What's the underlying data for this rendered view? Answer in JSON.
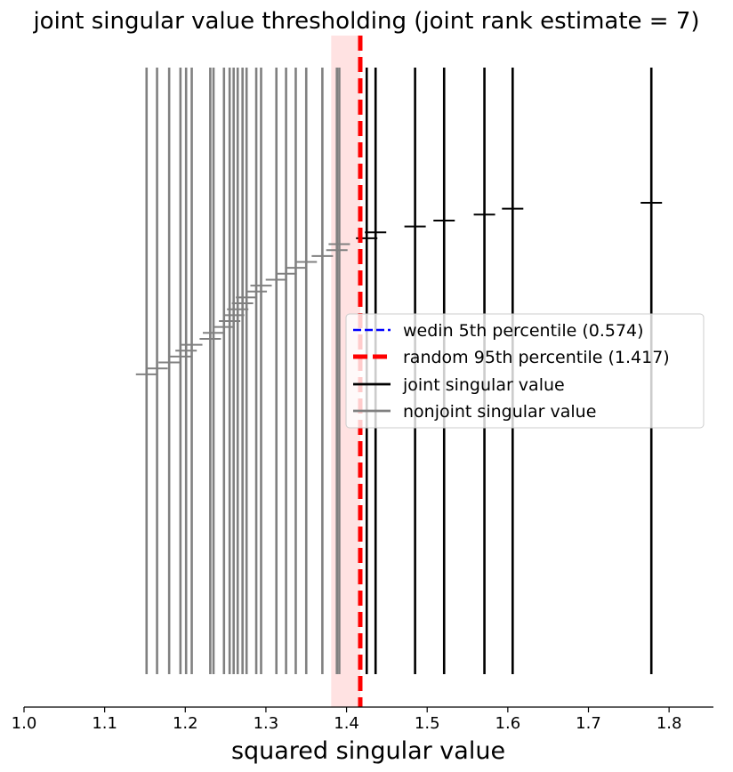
{
  "chart_data": {
    "type": "line",
    "title": "joint singular value thresholding (joint rank estimate = 7)",
    "xlabel": "squared singular value",
    "ylabel": "",
    "xlim": [
      1.0,
      1.855
    ],
    "xticks": [
      {
        "value": 1.0,
        "label": "1.0"
      },
      {
        "value": 1.1,
        "label": "1.1"
      },
      {
        "value": 1.2,
        "label": "1.2"
      },
      {
        "value": 1.3,
        "label": "1.3"
      },
      {
        "value": 1.4,
        "label": "1.4"
      },
      {
        "value": 1.5,
        "label": "1.5"
      },
      {
        "value": 1.6,
        "label": "1.6"
      },
      {
        "value": 1.7,
        "label": "1.7"
      },
      {
        "value": 1.8,
        "label": "1.8"
      }
    ],
    "grid": false,
    "legend_position": "center-right",
    "thresholds": {
      "random": {
        "value": 1.417,
        "color": "#ff0000",
        "interval": [
          1.381,
          1.417
        ]
      },
      "wedin": {
        "value": 0.574,
        "color": "#0000ff"
      }
    },
    "series": [
      {
        "name": "joint singular value",
        "color": "#000000",
        "values": [
          1.778,
          1.606,
          1.571,
          1.521,
          1.485,
          1.436,
          1.425
        ]
      },
      {
        "name": "nonjoint singular value",
        "color": "#808080",
        "values": [
          1.391,
          1.388,
          1.37,
          1.35,
          1.337,
          1.325,
          1.313,
          1.294,
          1.288,
          1.276,
          1.271,
          1.265,
          1.26,
          1.255,
          1.248,
          1.235,
          1.231,
          1.208,
          1.201,
          1.194,
          1.18,
          1.165,
          1.152
        ]
      }
    ],
    "legend": [
      {
        "label": "wedin 5th percentile (0.574)",
        "color": "#0000ff",
        "style": "dashed"
      },
      {
        "label": "random 95th percentile (1.417)",
        "color": "#ff0000",
        "style": "dashed-thick"
      },
      {
        "label": "joint singular value",
        "color": "#000000",
        "style": "solid"
      },
      {
        "label": "nonjoint singular value",
        "color": "#808080",
        "style": "solid"
      }
    ]
  }
}
